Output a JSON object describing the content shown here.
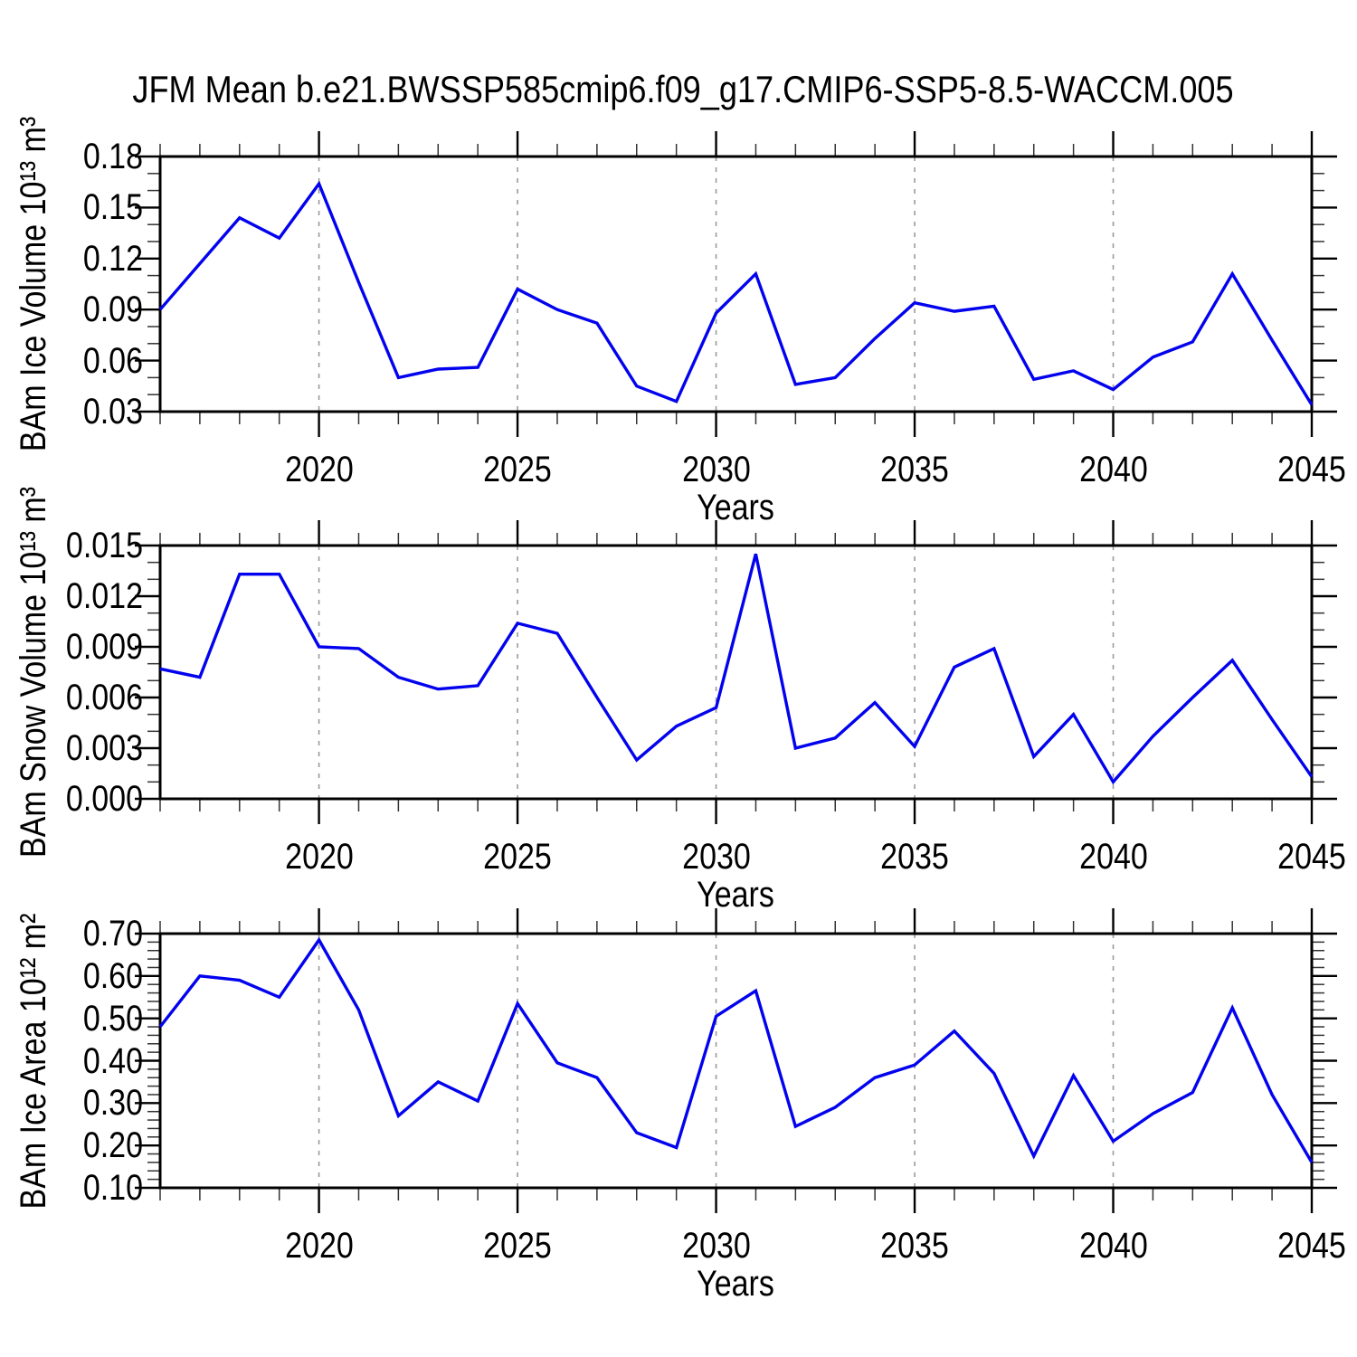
{
  "title": "JFM Mean b.e21.BWSSP585cmip6.f09_g17.CMIP6-SSP5-8.5-WACCM.005",
  "colors": {
    "line": "#0202ee",
    "frame": "#000000",
    "grid": "#9a9a9a"
  },
  "x_axis": {
    "label": "Years",
    "range": [
      2016,
      2045
    ],
    "tick_years": [
      2020,
      2025,
      2030,
      2035,
      2040,
      2045
    ],
    "tick_labels": [
      "2020",
      "2025",
      "2030",
      "2035",
      "2040",
      "2045"
    ],
    "gridline_years": [
      2020,
      2025,
      2030,
      2035,
      2040
    ],
    "minor_step": 1
  },
  "chart_data": [
    {
      "type": "line",
      "name": "ice_volume",
      "ylabel": "BAm Ice Volume 10¹³ m³",
      "ylim": [
        0.03,
        0.18
      ],
      "ytick_values": [
        0.03,
        0.06,
        0.09,
        0.12,
        0.15,
        0.18
      ],
      "ytick_labels": [
        "0.03",
        "0.06",
        "0.09",
        "0.12",
        "0.15",
        "0.18"
      ],
      "yminor_step": 0.01,
      "grid": "vertical-dashed",
      "legend": "none",
      "x": [
        2016,
        2017,
        2018,
        2019,
        2020,
        2021,
        2022,
        2023,
        2024,
        2025,
        2026,
        2027,
        2028,
        2029,
        2030,
        2031,
        2032,
        2033,
        2034,
        2035,
        2036,
        2037,
        2038,
        2039,
        2040,
        2041,
        2042,
        2043,
        2044,
        2045
      ],
      "values": [
        0.09,
        0.117,
        0.144,
        0.132,
        0.164,
        0.106,
        0.05,
        0.055,
        0.056,
        0.102,
        0.09,
        0.082,
        0.045,
        0.036,
        0.088,
        0.111,
        0.046,
        0.05,
        0.073,
        0.094,
        0.089,
        0.092,
        0.049,
        0.054,
        0.043,
        0.062,
        0.071,
        0.111,
        0.072,
        0.034
      ]
    },
    {
      "type": "line",
      "name": "snow_volume",
      "ylabel": "BAm Snow Volume 10¹³ m³",
      "ylim": [
        0.0,
        0.015
      ],
      "ytick_values": [
        0.0,
        0.003,
        0.006,
        0.009,
        0.012,
        0.015
      ],
      "ytick_labels": [
        "0.000",
        "0.003",
        "0.006",
        "0.009",
        "0.012",
        "0.015"
      ],
      "yminor_step": 0.001,
      "grid": "vertical-dashed",
      "legend": "none",
      "x": [
        2016,
        2017,
        2018,
        2019,
        2020,
        2021,
        2022,
        2023,
        2024,
        2025,
        2026,
        2027,
        2028,
        2029,
        2030,
        2031,
        2032,
        2033,
        2034,
        2035,
        2036,
        2037,
        2038,
        2039,
        2040,
        2041,
        2042,
        2043,
        2044,
        2045
      ],
      "values": [
        0.0077,
        0.0072,
        0.0133,
        0.0133,
        0.009,
        0.0089,
        0.0072,
        0.0065,
        0.0067,
        0.0104,
        0.0098,
        0.006,
        0.0023,
        0.0043,
        0.0054,
        0.0145,
        0.003,
        0.0036,
        0.0057,
        0.0031,
        0.0078,
        0.0089,
        0.0025,
        0.005,
        0.001,
        0.0037,
        0.006,
        0.0082,
        0.0047,
        0.0013
      ]
    },
    {
      "type": "line",
      "name": "ice_area",
      "ylabel": "BAm Ice Area 10¹² m²",
      "ylim": [
        0.1,
        0.7
      ],
      "ytick_values": [
        0.1,
        0.2,
        0.3,
        0.4,
        0.5,
        0.6,
        0.7
      ],
      "ytick_labels": [
        "0.10",
        "0.20",
        "0.30",
        "0.40",
        "0.50",
        "0.60",
        "0.70"
      ],
      "yminor_step": 0.02,
      "grid": "vertical-dashed",
      "legend": "none",
      "x": [
        2016,
        2017,
        2018,
        2019,
        2020,
        2021,
        2022,
        2023,
        2024,
        2025,
        2026,
        2027,
        2028,
        2029,
        2030,
        2031,
        2032,
        2033,
        2034,
        2035,
        2036,
        2037,
        2038,
        2039,
        2040,
        2041,
        2042,
        2043,
        2044,
        2045
      ],
      "values": [
        0.48,
        0.6,
        0.59,
        0.55,
        0.685,
        0.52,
        0.27,
        0.35,
        0.305,
        0.535,
        0.395,
        0.36,
        0.23,
        0.195,
        0.505,
        0.565,
        0.245,
        0.29,
        0.36,
        0.39,
        0.47,
        0.37,
        0.175,
        0.365,
        0.21,
        0.275,
        0.325,
        0.525,
        0.32,
        0.16
      ]
    }
  ]
}
